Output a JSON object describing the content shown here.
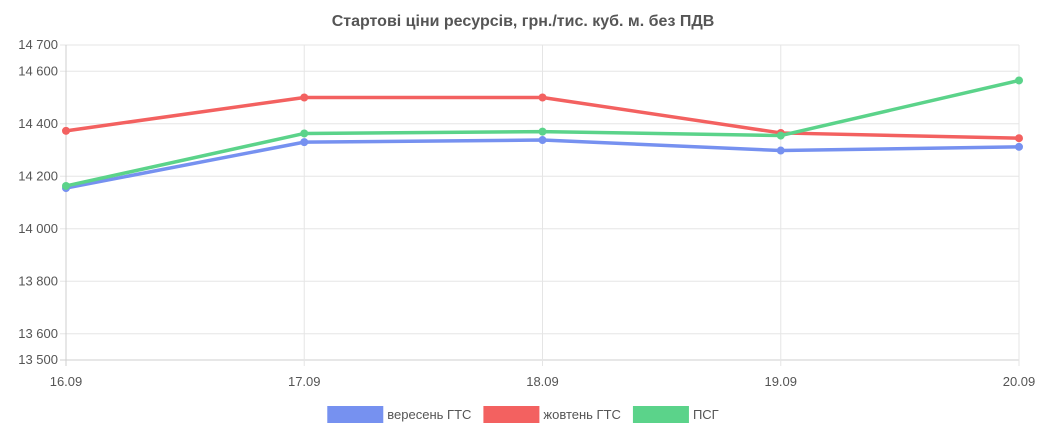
{
  "chart_data": {
    "type": "line",
    "title": "Стартові ціни ресурсів, грн./тис. куб. м. без ПДВ",
    "xlabel": "",
    "ylabel": "",
    "categories": [
      "16.09",
      "17.09",
      "18.09",
      "19.09",
      "20.09"
    ],
    "ylim": [
      13500,
      14700
    ],
    "yticks": [
      13500,
      13600,
      13800,
      14000,
      14200,
      14400,
      14600,
      14700
    ],
    "ytick_labels": [
      "13 500",
      "13 600",
      "13 800",
      "14 000",
      "14 200",
      "14 400",
      "14 600",
      "14 700"
    ],
    "grid": true,
    "legend_position": "bottom",
    "series": [
      {
        "name": "вересень ГТС",
        "color": "#7691f0",
        "values": [
          14155,
          14330,
          14338,
          14298,
          14312
        ]
      },
      {
        "name": "жовтень ГТС",
        "color": "#f36160",
        "values": [
          14373,
          14500,
          14500,
          14365,
          14345
        ]
      },
      {
        "name": "ПСГ",
        "color": "#5bd38a",
        "values": [
          14163,
          14363,
          14370,
          14355,
          14565
        ]
      }
    ]
  }
}
